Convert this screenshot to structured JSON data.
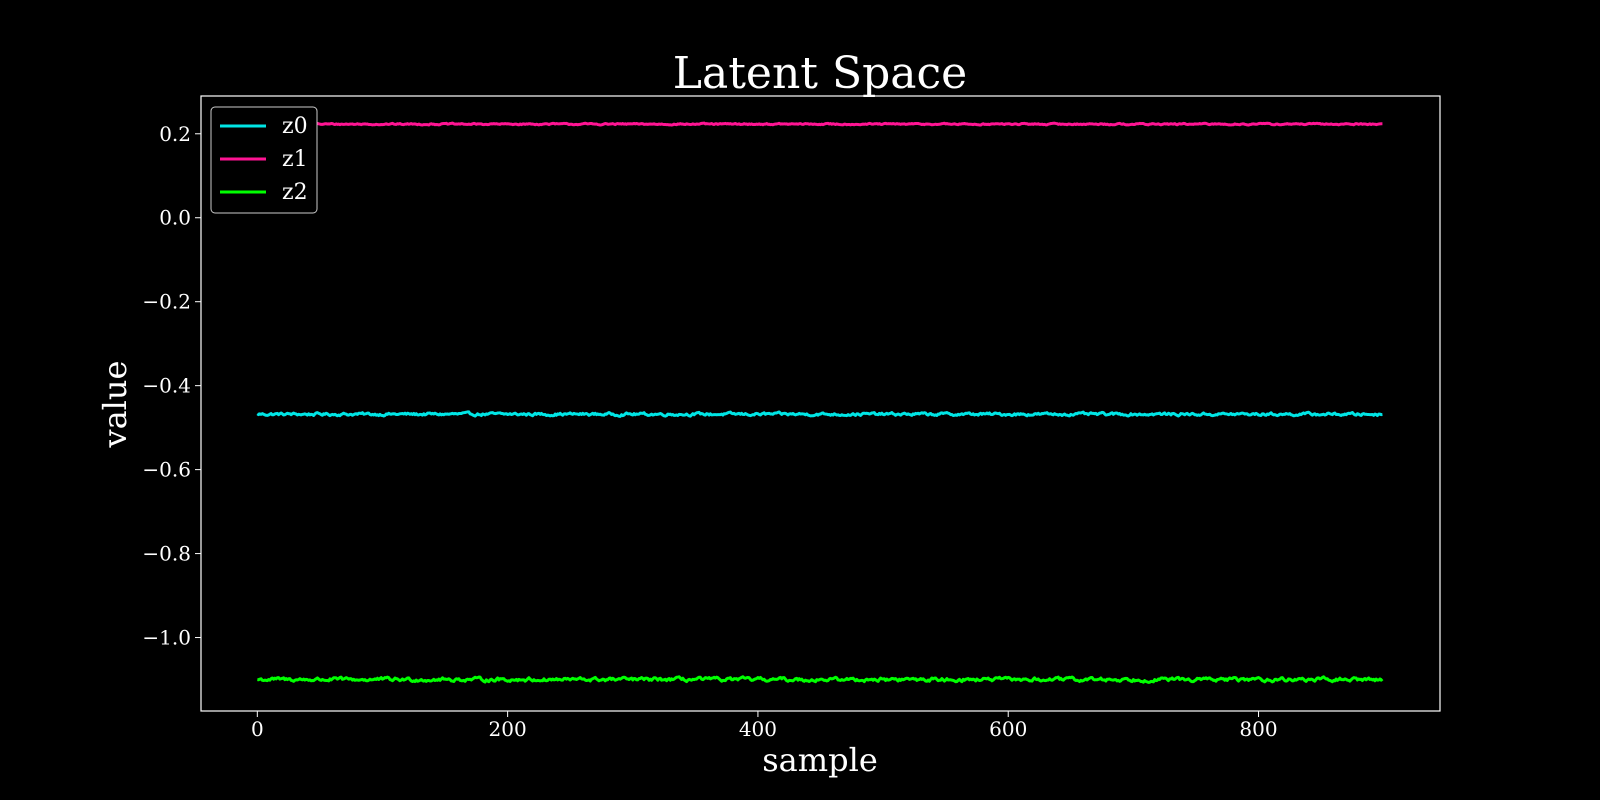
{
  "chart_data": {
    "type": "line",
    "title": "Latent Space",
    "xlabel": "sample",
    "ylabel": "value",
    "xlim": [
      -45,
      945
    ],
    "ylim": [
      -1.175,
      0.29
    ],
    "x_ticks": [
      0,
      200,
      400,
      600,
      800
    ],
    "y_ticks": [
      0.2,
      0.0,
      -0.2,
      -0.4,
      -0.6,
      -0.8,
      -1.0
    ],
    "x_tick_labels": [
      "0",
      "200",
      "400",
      "600",
      "800"
    ],
    "y_tick_labels": [
      "0.2",
      "0.0",
      "−0.2",
      "−0.4",
      "−0.6",
      "−0.8",
      "−1.0"
    ],
    "background": "#000000",
    "grid": false,
    "legend_position": "top-left",
    "n_samples": 900,
    "series": [
      {
        "name": "z0",
        "color": "#00e5e5",
        "mean": -0.468,
        "noise": 0.003
      },
      {
        "name": "z1",
        "color": "#ff1493",
        "mean": 0.223,
        "noise": 0.0015
      },
      {
        "name": "z2",
        "color": "#00ff00",
        "mean": -1.1,
        "noise": 0.004
      }
    ]
  }
}
